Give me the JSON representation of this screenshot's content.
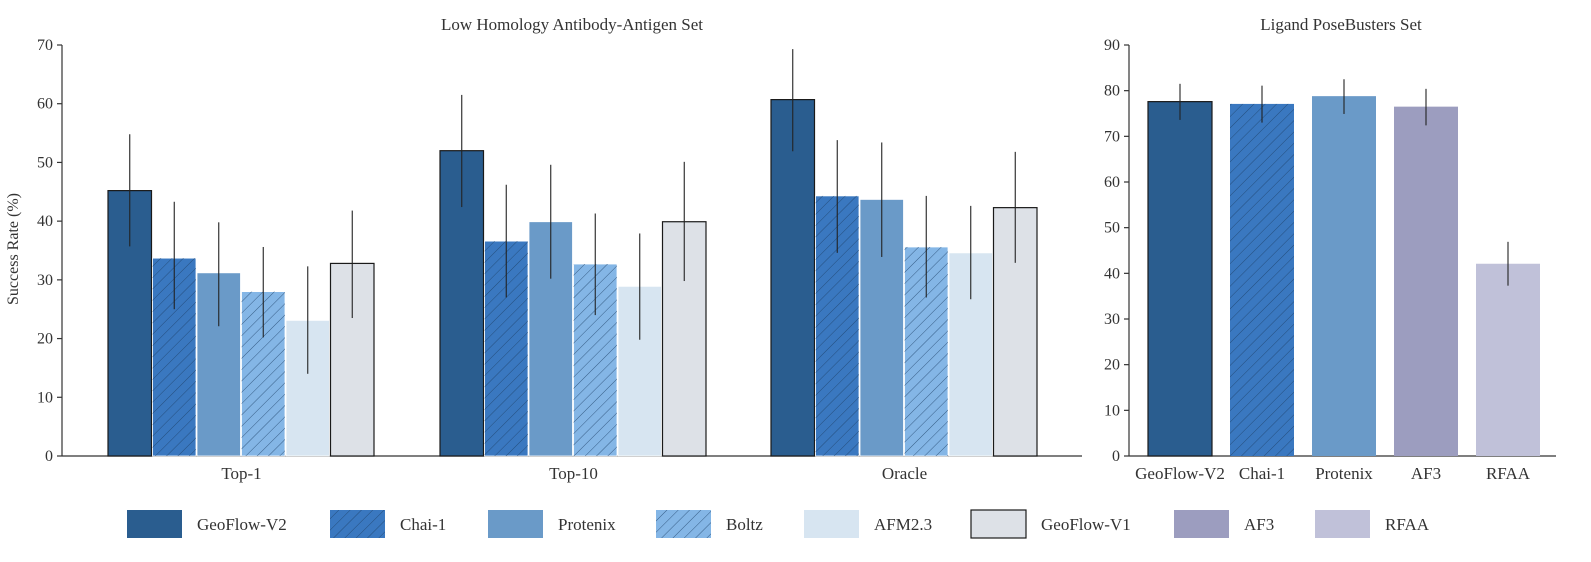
{
  "colors": {
    "GeoFlow-V2": "#2a5d8f",
    "Chai-1": "#3a78c0",
    "Protenix": "#6a9ac8",
    "Boltz": "#84b6e6",
    "AFM2.3": "#d7e5f1",
    "GeoFlow-V1": "#dde1e7",
    "AF3": "#9c9dbf",
    "RFAA": "#c0c1d9"
  },
  "legend": {
    "items": [
      {
        "label": "GeoFlow-V2",
        "color": "#2a5d8f",
        "hatch": false,
        "border": false
      },
      {
        "label": "Chai-1",
        "color": "#3a78c0",
        "hatch": true,
        "border": false
      },
      {
        "label": "Protenix",
        "color": "#6a9ac8",
        "hatch": false,
        "border": false
      },
      {
        "label": "Boltz",
        "color": "#84b6e6",
        "hatch": true,
        "border": false
      },
      {
        "label": "AFM2.3",
        "color": "#d7e5f1",
        "hatch": false,
        "border": false
      },
      {
        "label": "GeoFlow-V1",
        "color": "#dde1e7",
        "hatch": false,
        "border": true
      },
      {
        "label": "AF3",
        "color": "#9c9dbf",
        "hatch": false,
        "border": false
      },
      {
        "label": "RFAA",
        "color": "#c0c1d9",
        "hatch": false,
        "border": false
      }
    ]
  },
  "chart_data": [
    {
      "type": "bar",
      "title": "Low Homology Antibody-Antigen Set",
      "xlabel": "",
      "ylabel": "Success Rate (%)",
      "ylim": [
        0,
        70
      ],
      "yticks": [
        0,
        10,
        20,
        30,
        40,
        50,
        60,
        70
      ],
      "categories": [
        "Top-1",
        "Top-10",
        "Oracle"
      ],
      "series": [
        {
          "name": "GeoFlow-V2",
          "values": [
            45.2,
            52.0,
            60.7
          ],
          "err_low": [
            35.7,
            42.4,
            51.9
          ],
          "err_high": [
            54.8,
            61.5,
            69.3
          ]
        },
        {
          "name": "Chai-1",
          "values": [
            33.7,
            36.6,
            44.3
          ],
          "err_low": [
            25.0,
            27.0,
            34.6
          ],
          "err_high": [
            43.3,
            46.2,
            53.8
          ]
        },
        {
          "name": "Protenix",
          "values": [
            31.2,
            39.9,
            43.7
          ],
          "err_low": [
            22.1,
            30.2,
            33.9
          ],
          "err_high": [
            39.8,
            49.6,
            53.4
          ]
        },
        {
          "name": "Boltz",
          "values": [
            28.0,
            32.7,
            35.6
          ],
          "err_low": [
            20.2,
            24.0,
            27.0
          ],
          "err_high": [
            35.6,
            41.3,
            44.3
          ]
        },
        {
          "name": "AFM2.3",
          "values": [
            23.1,
            28.9,
            34.6
          ],
          "err_low": [
            14.0,
            19.8,
            26.7
          ],
          "err_high": [
            32.3,
            37.9,
            42.6
          ]
        },
        {
          "name": "GeoFlow-V1",
          "values": [
            32.8,
            39.9,
            42.3
          ],
          "err_low": [
            23.5,
            29.8,
            32.9
          ],
          "err_high": [
            41.8,
            50.1,
            51.8
          ]
        }
      ]
    },
    {
      "type": "bar",
      "title": "Ligand PoseBusters Set",
      "xlabel": "",
      "ylabel": "",
      "ylim": [
        0,
        90
      ],
      "yticks": [
        0,
        10,
        20,
        30,
        40,
        50,
        60,
        70,
        80,
        90
      ],
      "categories": [
        "GeoFlow-V2",
        "Chai-1",
        "Protenix",
        "AF3",
        "RFAA"
      ],
      "values": [
        77.6,
        77.1,
        78.8,
        76.5,
        42.1
      ],
      "err_low": [
        73.6,
        73.0,
        74.9,
        72.4,
        37.3
      ],
      "err_high": [
        81.5,
        81.1,
        82.5,
        80.4,
        46.9
      ]
    }
  ]
}
